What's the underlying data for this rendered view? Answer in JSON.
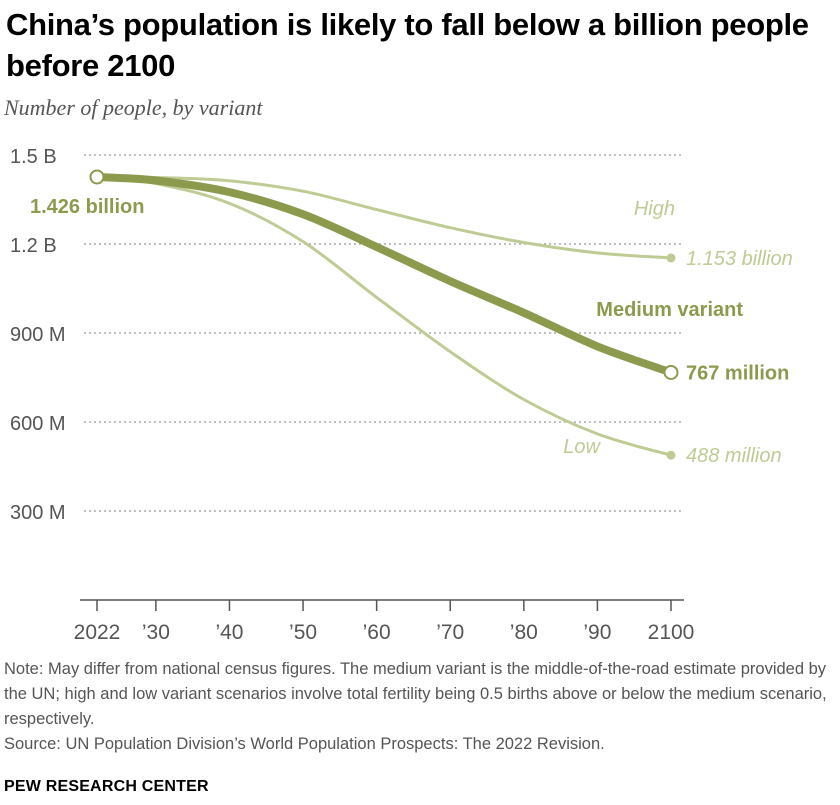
{
  "title": "China’s population is likely to fall below a billion people before 2100",
  "subtitle": "Number of people, by variant",
  "colors": {
    "medium": "#8c9a4e",
    "light": "#bfcb94",
    "grid": "#999999",
    "axis": "#555555"
  },
  "chart_data": {
    "type": "line",
    "title": "China’s population is likely to fall below a billion people before 2100",
    "ylabel": "Number of people, by variant",
    "xlabel": "",
    "xlim": [
      2022,
      2100
    ],
    "ylim": [
      0,
      1500
    ],
    "y_ticks": [
      {
        "value": 300,
        "label": "300 M"
      },
      {
        "value": 600,
        "label": "600 M"
      },
      {
        "value": 900,
        "label": "900 M"
      },
      {
        "value": 1200,
        "label": "1.2 B"
      },
      {
        "value": 1500,
        "label": "1.5 B"
      }
    ],
    "x_ticks": [
      {
        "value": 2022,
        "label": "2022"
      },
      {
        "value": 2030,
        "label": "’30"
      },
      {
        "value": 2040,
        "label": "’40"
      },
      {
        "value": 2050,
        "label": "’50"
      },
      {
        "value": 2060,
        "label": "’60"
      },
      {
        "value": 2070,
        "label": "’70"
      },
      {
        "value": 2080,
        "label": "’80"
      },
      {
        "value": 2090,
        "label": "’90"
      },
      {
        "value": 2100,
        "label": "2100"
      }
    ],
    "series": [
      {
        "name": "High",
        "x": [
          2022,
          2030,
          2040,
          2050,
          2060,
          2070,
          2080,
          2090,
          2100
        ],
        "values": [
          1426,
          1424,
          1413,
          1378,
          1316,
          1255,
          1205,
          1170,
          1153
        ],
        "end_label": "1.153 billion"
      },
      {
        "name": "Medium variant",
        "x": [
          2022,
          2030,
          2040,
          2050,
          2060,
          2070,
          2080,
          2090,
          2100
        ],
        "values": [
          1426,
          1414,
          1375,
          1300,
          1190,
          1075,
          968,
          855,
          767
        ],
        "end_label": "767 million"
      },
      {
        "name": "Low",
        "x": [
          2022,
          2030,
          2040,
          2050,
          2060,
          2070,
          2080,
          2090,
          2100
        ],
        "values": [
          1426,
          1404,
          1337,
          1208,
          1020,
          837,
          676,
          560,
          488
        ],
        "end_label": "488 million"
      }
    ],
    "start_label": "1.426 billion",
    "start_value": 1426
  },
  "notes": {
    "note": "Note: May differ from national census figures. The medium variant is the middle-of-the-road estimate provided by the UN; high and low variant scenarios involve total fertility being 0.5 births above or below the medium scenario, respectively.",
    "source": "Source: UN Population Division’s World Population Prospects: The 2022 Revision."
  },
  "brand": "PEW RESEARCH CENTER"
}
